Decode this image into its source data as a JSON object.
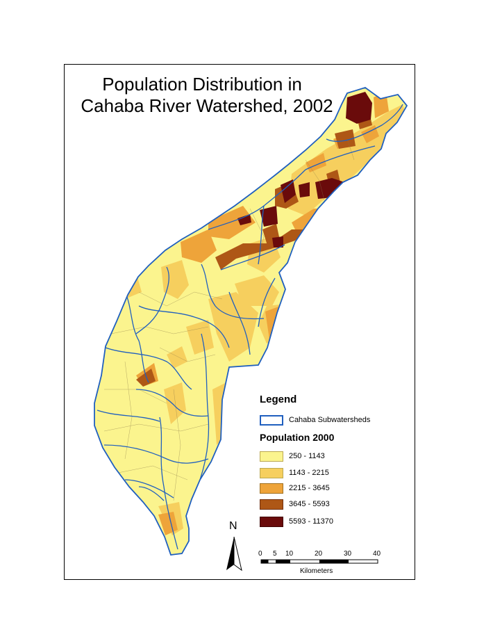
{
  "title": {
    "line1": "Population Distribution in",
    "line2": "Cahaba River Watershed, 2002"
  },
  "legend": {
    "title": "Legend",
    "subwatershed_label": "Cahaba Subwatersheds",
    "subwatershed_outline_color": "#1f5fbf",
    "population_title": "Population 2000",
    "classes": [
      {
        "label": "250 - 1143",
        "color": "#fbf48e"
      },
      {
        "label": "1143 - 2215",
        "color": "#f6cf5e"
      },
      {
        "label": "2215 - 3645",
        "color": "#eea43a"
      },
      {
        "label": "3645 - 5593",
        "color": "#ae5716"
      },
      {
        "label": "5593 - 11370",
        "color": "#6a0b0b"
      }
    ]
  },
  "north_arrow": {
    "label": "N"
  },
  "scale_bar": {
    "ticks": [
      "0",
      "5",
      "10",
      "20",
      "30",
      "40"
    ],
    "units": "Kilometers"
  }
}
